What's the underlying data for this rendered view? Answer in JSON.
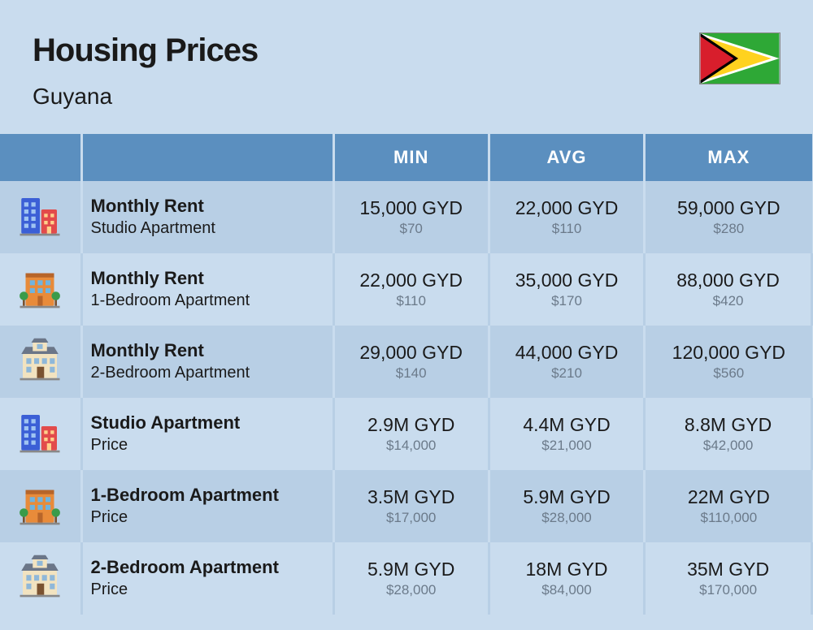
{
  "header": {
    "title": "Housing Prices",
    "subtitle": "Guyana"
  },
  "columns": {
    "min": "MIN",
    "avg": "AVG",
    "max": "MAX"
  },
  "colors": {
    "page_bg": "#c9dcee",
    "header_bg": "#5b8fbf",
    "row_odd": "#b8cfe5",
    "row_even": "#c9dcee",
    "text": "#1a1a1a",
    "subtext": "#6b7a8a"
  },
  "flag": {
    "bg": "#2ea836",
    "white": "#ffffff",
    "yellow": "#ffd21f",
    "black": "#000000",
    "red": "#d81e2c"
  },
  "icons": {
    "studio": {
      "tall_fill": "#3b5fd6",
      "tall_windows": "#9fc4f2",
      "short_fill": "#e24b4b",
      "short_windows": "#ffd08a"
    },
    "onebr": {
      "fill": "#e88b3a",
      "trim": "#b7652a",
      "windows": "#6fb4e0",
      "tree": "#3a9b4a",
      "trunk": "#7a5230"
    },
    "twobr": {
      "fill": "#f2e3c0",
      "roof": "#6b7688",
      "windows": "#8fb8d9",
      "door": "#7a5230"
    }
  },
  "rows": [
    {
      "icon": "studio",
      "title": "Monthly Rent",
      "sub": "Studio Apartment",
      "min_main": "15,000 GYD",
      "min_sub": "$70",
      "avg_main": "22,000 GYD",
      "avg_sub": "$110",
      "max_main": "59,000 GYD",
      "max_sub": "$280"
    },
    {
      "icon": "onebr",
      "title": "Monthly Rent",
      "sub": "1-Bedroom Apartment",
      "min_main": "22,000 GYD",
      "min_sub": "$110",
      "avg_main": "35,000 GYD",
      "avg_sub": "$170",
      "max_main": "88,000 GYD",
      "max_sub": "$420"
    },
    {
      "icon": "twobr",
      "title": "Monthly Rent",
      "sub": "2-Bedroom Apartment",
      "min_main": "29,000 GYD",
      "min_sub": "$140",
      "avg_main": "44,000 GYD",
      "avg_sub": "$210",
      "max_main": "120,000 GYD",
      "max_sub": "$560"
    },
    {
      "icon": "studio",
      "title": "Studio Apartment",
      "sub": "Price",
      "min_main": "2.9M GYD",
      "min_sub": "$14,000",
      "avg_main": "4.4M GYD",
      "avg_sub": "$21,000",
      "max_main": "8.8M GYD",
      "max_sub": "$42,000"
    },
    {
      "icon": "onebr",
      "title": "1-Bedroom Apartment",
      "sub": "Price",
      "min_main": "3.5M GYD",
      "min_sub": "$17,000",
      "avg_main": "5.9M GYD",
      "avg_sub": "$28,000",
      "max_main": "22M GYD",
      "max_sub": "$110,000"
    },
    {
      "icon": "twobr",
      "title": "2-Bedroom Apartment",
      "sub": "Price",
      "min_main": "5.9M GYD",
      "min_sub": "$28,000",
      "avg_main": "18M GYD",
      "avg_sub": "$84,000",
      "max_main": "35M GYD",
      "max_sub": "$170,000"
    }
  ]
}
